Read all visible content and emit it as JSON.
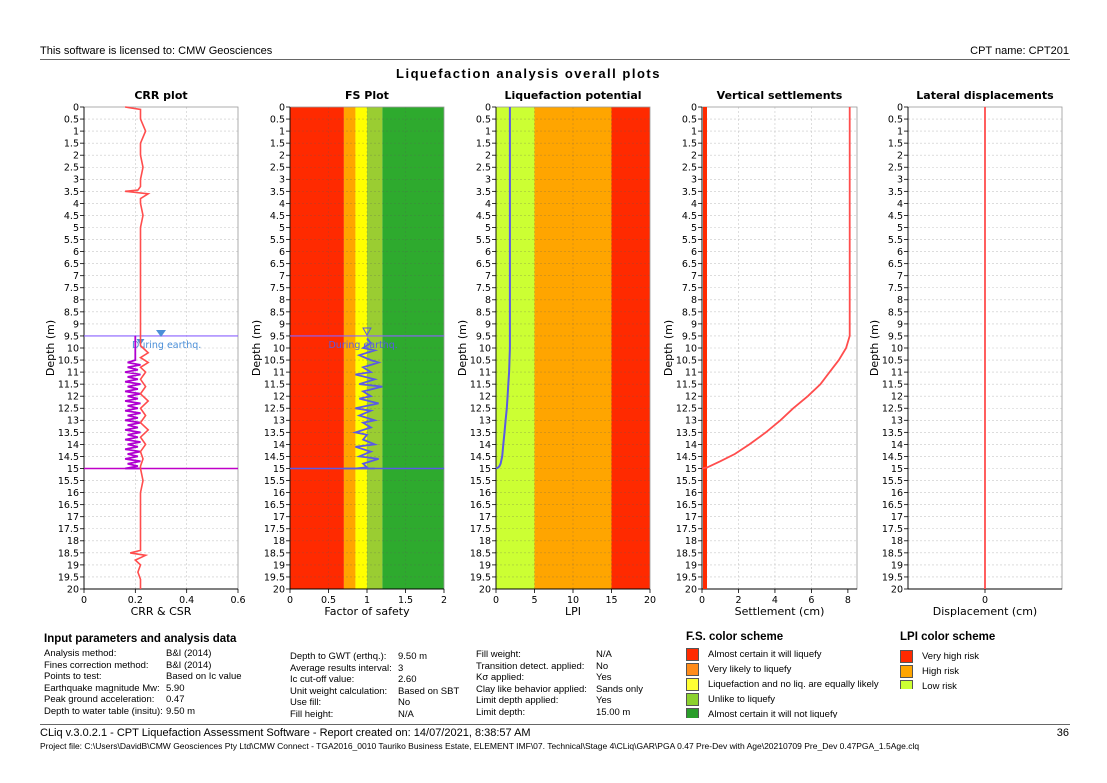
{
  "header": {
    "license": "This software is licensed to: CMW Geosciences",
    "cpt_name": "CPT name: CPT201"
  },
  "main_title": "Liquefaction analysis overall plots",
  "depth_label": "Depth (m)",
  "depth_ticks": [
    "0",
    "0.5",
    "1",
    "1.5",
    "2",
    "2.5",
    "3",
    "3.5",
    "4",
    "4.5",
    "5",
    "5.5",
    "6",
    "6.5",
    "7",
    "7.5",
    "8",
    "8.5",
    "9",
    "9.5",
    "10",
    "10.5",
    "11",
    "11.5",
    "12",
    "12.5",
    "13",
    "13.5",
    "14",
    "14.5",
    "15",
    "15.5",
    "16",
    "16.5",
    "17",
    "17.5",
    "18",
    "18.5",
    "19",
    "19.5",
    "20"
  ],
  "colors": {
    "red": "#ff2a00",
    "orange": "#ffa500",
    "yellow": "#ffff00",
    "lightgreen": "#9acd32",
    "green": "#2eaa2e",
    "lpi_green": "#ccff33",
    "crr": "#ff4d4d",
    "csr": "#b000d0",
    "fs": "#5a5ae6",
    "gwt": "#8a60ff",
    "gwt_marker": "#4b8fd8"
  },
  "chart_data": [
    {
      "type": "line",
      "title": "CRR plot",
      "xlabel": "CRR & CSR",
      "ylabel": "Depth (m)",
      "xlim": [
        0,
        0.6
      ],
      "ylim": [
        0,
        20
      ],
      "xticks": [
        "0",
        "0.2",
        "0.4",
        "0.6"
      ],
      "grid": true,
      "gwt_label": "During earthq.",
      "gwt_depth": 9.5,
      "test_limit_depth": 15,
      "series": [
        {
          "role": "CRR",
          "x": [
            0.16,
            0.22,
            0.22,
            0.24,
            0.22,
            0.22,
            0.23,
            0.22,
            0.22,
            0.21,
            0.16,
            0.25,
            0.22,
            0.22,
            0.23,
            0.22,
            0.22,
            0.22,
            0.22,
            0.22,
            0.22,
            0.22,
            0.22,
            0.22,
            0.22,
            0.22,
            0.22,
            0.22,
            0.23,
            0.25,
            0.22,
            0.25,
            0.22,
            0.24,
            0.22,
            0.24,
            0.22,
            0.25,
            0.22,
            0.24,
            0.22,
            0.25,
            0.22,
            0.24,
            0.22,
            0.23,
            0.22,
            0.22,
            0.23,
            0.22,
            0.22,
            0.22,
            0.22,
            0.22,
            0.22,
            0.22,
            0.22,
            0.22,
            0.18,
            0.24,
            0.2,
            0.22,
            0.21,
            0.22,
            0.22,
            0.22
          ],
          "y": [
            0,
            0.1,
            0.5,
            1.0,
            1.5,
            2.0,
            2.5,
            3.0,
            3.3,
            3.45,
            3.5,
            3.6,
            3.8,
            4.0,
            4.5,
            5.0,
            5.5,
            6.0,
            6.5,
            7.0,
            7.5,
            8.0,
            8.5,
            9.0,
            9.5,
            9.7,
            9.8,
            9.9,
            10.0,
            10.2,
            10.4,
            10.6,
            10.8,
            11.0,
            11.3,
            11.6,
            11.9,
            12.2,
            12.5,
            12.8,
            13.1,
            13.4,
            13.7,
            14.0,
            14.3,
            14.6,
            14.9,
            15.0,
            15.5,
            16.0,
            16.5,
            17.0,
            17.5,
            17.8,
            18.0,
            18.2,
            18.3,
            18.4,
            18.5,
            18.6,
            18.8,
            19.0,
            19.3,
            19.6,
            19.8,
            20.0
          ]
        },
        {
          "role": "CSR",
          "x": [
            0.2,
            0.2,
            0.17,
            0.22,
            0.17,
            0.21,
            0.16,
            0.22,
            0.17,
            0.21,
            0.16,
            0.22,
            0.17,
            0.21,
            0.16,
            0.22,
            0.17,
            0.21,
            0.16,
            0.22,
            0.17,
            0.21,
            0.16,
            0.22,
            0.17,
            0.21,
            0.16,
            0.22,
            0.17,
            0.21,
            0.16,
            0.22,
            0.17,
            0.21,
            0.16,
            0.22,
            0.17,
            0.21,
            0.16,
            0.22,
            0.17,
            0.21,
            0.16,
            0.22,
            0.17,
            0.21,
            0.16,
            0.22,
            0.17,
            0.21,
            0.16,
            0.22,
            0.17,
            0.21,
            0.16,
            0.22,
            0.17,
            0.21,
            0.16,
            0.22,
            0.17,
            0.2
          ],
          "y": [
            9.5,
            10.5,
            10.6,
            10.7,
            10.8,
            10.9,
            11.0,
            11.1,
            11.2,
            11.3,
            11.4,
            11.5,
            11.6,
            11.7,
            11.8,
            11.9,
            12.0,
            12.1,
            12.2,
            12.3,
            12.4,
            12.5,
            12.6,
            12.7,
            12.8,
            12.9,
            13.0,
            13.1,
            13.2,
            13.3,
            13.4,
            13.5,
            13.6,
            13.7,
            13.8,
            13.9,
            14.0,
            14.1,
            14.2,
            14.3,
            14.4,
            14.5,
            14.6,
            14.7,
            14.8,
            14.9,
            15.0,
            15.0,
            15.0,
            15.0,
            15.0,
            15.0,
            15.0,
            15.0,
            15.0,
            15.0,
            15.0,
            15.0,
            15.0,
            15.0,
            15.0,
            15.0
          ]
        }
      ]
    },
    {
      "type": "line",
      "title": "FS Plot",
      "xlabel": "Factor of safety",
      "ylabel": "Depth (m)",
      "xlim": [
        0,
        2
      ],
      "ylim": [
        0,
        20
      ],
      "xticks": [
        "0",
        "0.5",
        "1",
        "1.5",
        "2"
      ],
      "bands": [
        0.7,
        0.85,
        1.0,
        1.2
      ],
      "gwt_label": "During earthq.",
      "series": [
        {
          "role": "FS",
          "x": [
            1.0,
            1.05,
            0.95,
            1.1,
            0.9,
            1.05,
            1.15,
            0.95,
            1.05,
            0.85,
            1.1,
            0.9,
            1.2,
            0.95,
            1.05,
            0.9,
            1.15,
            0.85,
            1.05,
            0.9,
            1.1,
            0.95,
            1.05,
            0.85,
            1.0,
            0.95,
            1.1,
            0.85,
            1.05,
            0.9,
            1.15,
            0.95,
            1.0,
            0.85,
            1.1,
            0.9,
            1.05,
            0.95,
            1.0,
            0.85,
            1.05,
            0.95,
            0.7
          ],
          "y": [
            9.6,
            9.8,
            10.0,
            10.1,
            10.3,
            10.5,
            10.6,
            10.8,
            11.0,
            11.1,
            11.3,
            11.5,
            11.6,
            11.8,
            12.0,
            12.1,
            12.3,
            12.5,
            12.6,
            12.8,
            13.0,
            13.1,
            13.3,
            13.5,
            13.6,
            13.8,
            14.0,
            14.1,
            14.3,
            14.5,
            14.6,
            14.8,
            14.95,
            15.0,
            15.0,
            15.0,
            15.0,
            15.0,
            15.0,
            15.0,
            15.0,
            15.0,
            15.0
          ]
        }
      ]
    },
    {
      "type": "line",
      "title": "Liquefaction potential",
      "xlabel": "LPI",
      "ylabel": "Depth (m)",
      "xlim": [
        0,
        20
      ],
      "ylim": [
        0,
        20
      ],
      "xticks": [
        "0",
        "5",
        "10",
        "15",
        "20"
      ],
      "bands": [
        5,
        15
      ],
      "series": [
        {
          "role": "LPI",
          "x": [
            1.8,
            1.8,
            1.8,
            1.75,
            1.7,
            1.6,
            1.5,
            1.4,
            1.25,
            1.1,
            0.95,
            0.8,
            0.6,
            0.45,
            0.3,
            0.15,
            0
          ],
          "y": [
            0,
            9.5,
            10.0,
            10.5,
            11.0,
            11.5,
            12.0,
            12.5,
            13.0,
            13.5,
            14.0,
            14.5,
            14.8,
            14.9,
            14.95,
            14.98,
            15.0
          ]
        }
      ]
    },
    {
      "type": "line",
      "title": "Vertical settlements",
      "xlabel": "Settlement (cm)",
      "ylabel": "Depth (m)",
      "xlim": [
        0,
        8.5
      ],
      "ylim": [
        0,
        20
      ],
      "xticks": [
        "0",
        "2",
        "4",
        "6",
        "8"
      ],
      "series": [
        {
          "role": "Settlement",
          "x": [
            8.1,
            8.1,
            8.1,
            7.9,
            7.5,
            7.0,
            6.5,
            5.8,
            5.0,
            4.3,
            3.5,
            2.6,
            1.8,
            1.0,
            0.3,
            0
          ],
          "y": [
            0,
            9.3,
            9.5,
            10.0,
            10.5,
            11.0,
            11.5,
            12.0,
            12.5,
            13.0,
            13.5,
            14.0,
            14.4,
            14.7,
            14.95,
            15.0
          ]
        }
      ]
    },
    {
      "type": "line",
      "title": "Lateral displacements",
      "xlabel": "Displacement (cm)",
      "ylabel": "Depth (m)",
      "xlim": [
        -1,
        1
      ],
      "ylim": [
        0,
        20
      ],
      "xticks": [
        "0"
      ],
      "series": [
        {
          "role": "Displacement",
          "x": [
            0,
            0
          ],
          "y": [
            0,
            20
          ]
        }
      ]
    }
  ],
  "input_parameters": {
    "title": "Input parameters and analysis data",
    "col1": [
      {
        "label": "Analysis method:",
        "value": "B&I (2014)"
      },
      {
        "label": "Fines correction method:",
        "value": "B&I (2014)"
      },
      {
        "label": "Points to test:",
        "value": "Based on Ic value"
      },
      {
        "label": "Earthquake magnitude Mw:",
        "value": "5.90"
      },
      {
        "label": "Peak ground acceleration:",
        "value": "0.47"
      },
      {
        "label": "Depth to water table (insitu):",
        "value": "9.50 m"
      }
    ],
    "col2": [
      {
        "label": "Depth to GWT (erthq.):",
        "value": "9.50 m"
      },
      {
        "label": "Average results interval:",
        "value": "3"
      },
      {
        "label": "Ic cut-off value:",
        "value": "2.60"
      },
      {
        "label": "Unit weight calculation:",
        "value": "Based on SBT"
      },
      {
        "label": "Use fill:",
        "value": "No"
      },
      {
        "label": "Fill height:",
        "value": "N/A"
      }
    ],
    "col3": [
      {
        "label": "Fill weight:",
        "value": "N/A"
      },
      {
        "label": "Transition detect. applied:",
        "value": "No"
      },
      {
        "label": "Kσ applied:",
        "value": "Yes"
      },
      {
        "label": "Clay like behavior applied:",
        "value": "Sands only"
      },
      {
        "label": "Limit depth applied:",
        "value": "Yes"
      },
      {
        "label": "Limit depth:",
        "value": "15.00 m"
      }
    ]
  },
  "fs_scheme": {
    "title": "F.S. color scheme",
    "items": [
      {
        "label": "Almost certain it will liquefy",
        "color": "#ff2a00"
      },
      {
        "label": "Very likely to liquefy",
        "color": "#ff8c1a"
      },
      {
        "label": "Liquefaction and no liq. are equally likely",
        "color": "#ffff33"
      },
      {
        "label": "Unlike to liquefy",
        "color": "#8cd12e"
      },
      {
        "label": "Almost certain it will not liquefy",
        "color": "#2a9d2a"
      }
    ]
  },
  "lpi_scheme": {
    "title": "LPI color scheme",
    "items": [
      {
        "label": "Very high risk",
        "color": "#ff2a00"
      },
      {
        "label": "High risk",
        "color": "#ffa500"
      },
      {
        "label": "Low risk",
        "color": "#ccff33"
      }
    ]
  },
  "footer": {
    "software": "CLiq v.3.0.2.1 - CPT Liquefaction Assessment Software - Report created on: 14/07/2021, 8:38:57 AM",
    "page": "36",
    "project_file": "Project file: C:\\Users\\DavidB\\CMW Geosciences Pty Ltd\\CMW Connect - TGA2016_0010 Tauriko Business Estate, ELEMENT IMF\\07. Technical\\Stage 4\\CLiq\\GAR\\PGA 0.47 Pre-Dev with Age\\20210709 Pre_Dev 0.47PGA_1.5Age.clq"
  }
}
